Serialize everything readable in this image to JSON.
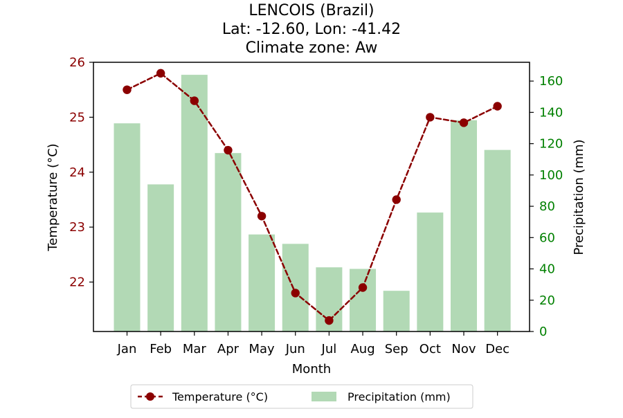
{
  "chart_data": {
    "type": "bar",
    "title_lines": [
      "LENCOIS (Brazil)",
      "Lat: -12.60, Lon: -41.42",
      "Climate zone: Aw"
    ],
    "xlabel": "Month",
    "ylabel_left": "Temperature (°C)",
    "ylabel_right": "Precipitation (mm)",
    "categories": [
      "Jan",
      "Feb",
      "Mar",
      "Apr",
      "May",
      "Jun",
      "Jul",
      "Aug",
      "Sep",
      "Oct",
      "Nov",
      "Dec"
    ],
    "series": [
      {
        "name": "Precipitation (mm)",
        "kind": "bar",
        "axis": "right",
        "color": "#b2d9b5",
        "values": [
          133,
          94,
          164,
          114,
          62,
          56,
          41,
          40,
          26,
          76,
          135,
          116
        ]
      },
      {
        "name": "Temperature (°C)",
        "kind": "line",
        "axis": "left",
        "color": "#8b0000",
        "style": "dashed",
        "marker": "circle",
        "values": [
          25.5,
          25.8,
          25.3,
          24.4,
          23.2,
          21.8,
          21.3,
          21.9,
          23.5,
          25.0,
          24.9,
          25.2
        ]
      }
    ],
    "left_axis": {
      "range": [
        21.1,
        26.0
      ],
      "ticks": [
        22,
        23,
        24,
        25,
        26
      ],
      "color": "#8b0000"
    },
    "right_axis": {
      "range": [
        0,
        172
      ],
      "ticks": [
        0,
        20,
        40,
        60,
        80,
        100,
        120,
        140,
        160
      ],
      "color": "#008000"
    },
    "grid": false,
    "legend_position": "bottom-center"
  }
}
